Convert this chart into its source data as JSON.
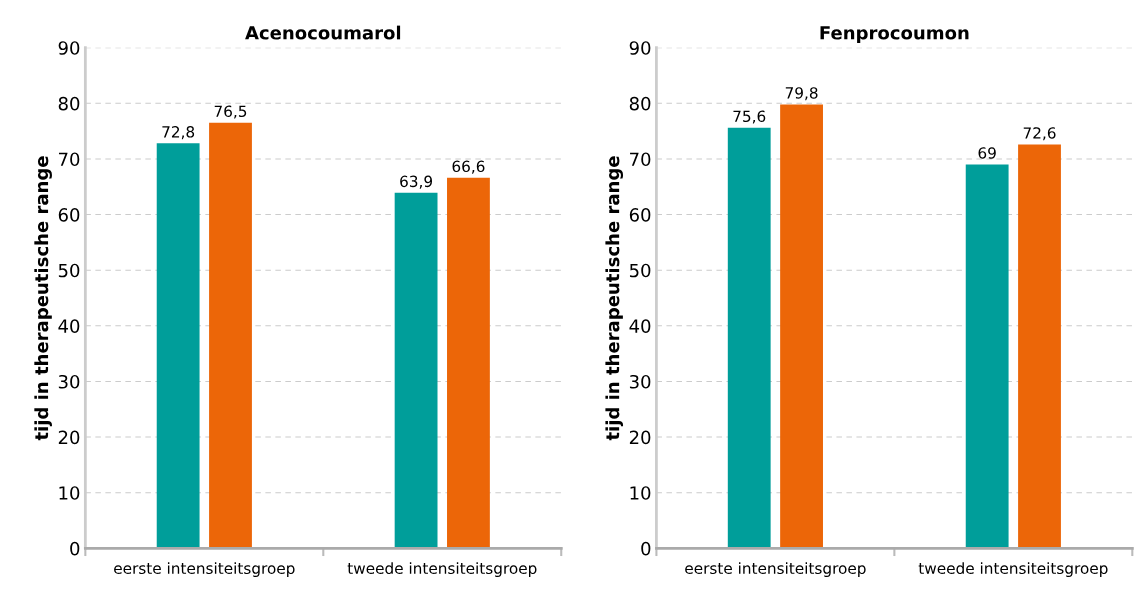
{
  "chart_data": [
    {
      "type": "bar",
      "title": "Acenocoumarol",
      "ylabel": "tijd in therapeutische range",
      "categories": [
        "eerste intensiteitsgroep",
        "tweede intensiteitsgroep"
      ],
      "series": [
        {
          "color": "#009e9a",
          "values": [
            72.8,
            63.9
          ],
          "value_labels": [
            "72,8",
            "63,9"
          ]
        },
        {
          "color": "#ec6608",
          "values": [
            76.5,
            66.6
          ],
          "value_labels": [
            "76,5",
            "66,6"
          ]
        }
      ],
      "ylim": [
        0,
        90
      ],
      "yticks": [
        0,
        10,
        20,
        30,
        40,
        50,
        60,
        70,
        80,
        90
      ],
      "grid": "y",
      "legend": false
    },
    {
      "type": "bar",
      "title": "Fenprocoumon",
      "ylabel": "tijd in therapeutische range",
      "categories": [
        "eerste intensiteitsgroep",
        "tweede intensiteitsgroep"
      ],
      "series": [
        {
          "color": "#009e9a",
          "values": [
            75.6,
            69
          ],
          "value_labels": [
            "75,6",
            "69"
          ]
        },
        {
          "color": "#ec6608",
          "values": [
            79.8,
            72.6
          ],
          "value_labels": [
            "79,8",
            "72,6"
          ]
        }
      ],
      "ylim": [
        0,
        90
      ],
      "yticks": [
        0,
        10,
        20,
        30,
        40,
        50,
        60,
        70,
        80,
        90
      ],
      "grid": "y",
      "legend": false
    }
  ]
}
